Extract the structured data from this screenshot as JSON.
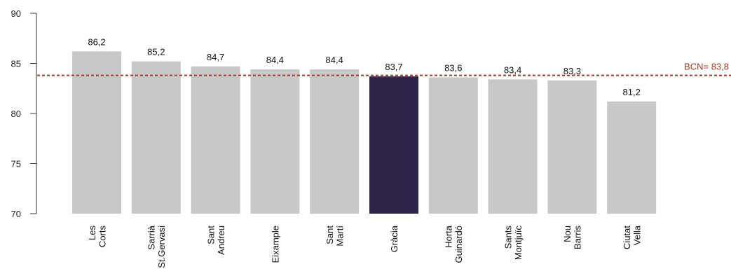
{
  "chart_data": {
    "type": "bar",
    "categories": [
      [
        "Les",
        "Corts"
      ],
      [
        "Sarrià",
        "St.Gervasi"
      ],
      [
        "Sant",
        "Andreu"
      ],
      [
        "Eixample"
      ],
      [
        "Sant",
        "Martí"
      ],
      [
        "Gràcia"
      ],
      [
        "Horta",
        "Guinardó"
      ],
      [
        "Sants",
        "Montjuïc"
      ],
      [
        "Nou",
        "Barris"
      ],
      [
        "Ciutat",
        "Vella"
      ]
    ],
    "values": [
      86.2,
      85.2,
      84.7,
      84.4,
      84.4,
      83.7,
      83.6,
      83.4,
      83.3,
      81.2
    ],
    "value_labels": [
      "86,2",
      "85,2",
      "84,7",
      "84,4",
      "84,4",
      "83,7",
      "83,6",
      "83,4",
      "83,3",
      "81,2"
    ],
    "highlight_index": 5,
    "ylim": [
      70,
      90
    ],
    "yticks": [
      70,
      75,
      80,
      85,
      90
    ],
    "reference_line": {
      "value": 83.8,
      "label": "BCN= 83,8"
    },
    "grid": false,
    "colors": {
      "bar": "#c8c8c8",
      "highlight": "#2d2447",
      "reference": "#a33a22",
      "axis": "#333333"
    }
  }
}
